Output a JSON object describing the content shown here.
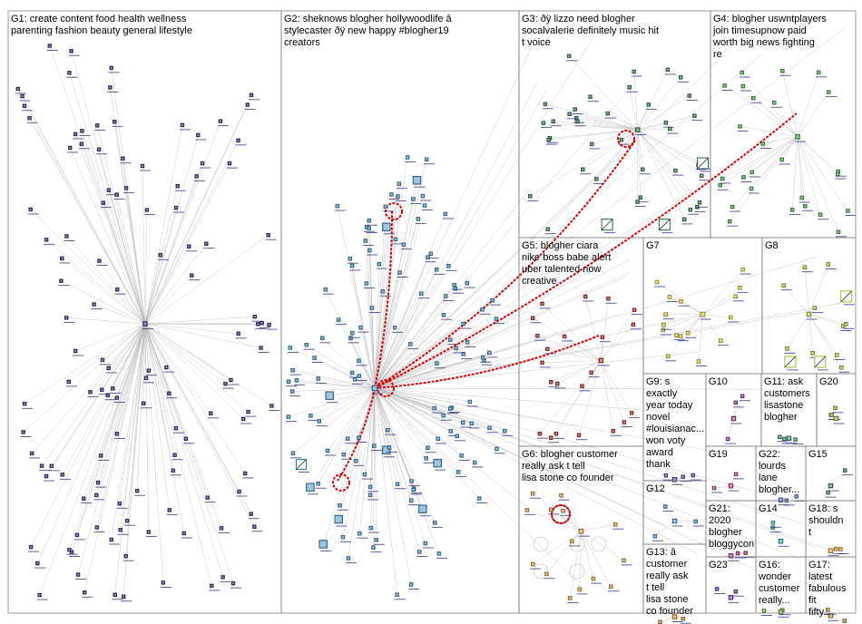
{
  "groups": [
    {
      "id": "G1",
      "label": "G1: create content food health wellness parenting fashion beauty general lifestyle",
      "color": "#2a1a6e"
    },
    {
      "id": "G2",
      "label": "G2: sheknows blogher hollywoodlife â stylecaster ðÿ new happy #blogher19 creators",
      "color": "#2d7fb8"
    },
    {
      "id": "G3",
      "label": "G3: ðÿ lizzo need blogher socalvalerie definitely music hit t voice",
      "color": "#1e6b3a"
    },
    {
      "id": "G4",
      "label": "G4: blogher uswntplayers join timesupnow paid worth big news fighting re",
      "color": "#2e9a2e"
    },
    {
      "id": "G5",
      "label": "G5: blogher ciara nike boss babe alert uber talented now creative",
      "color": "#a01818"
    },
    {
      "id": "G6",
      "label": "G6: blogher customer really ask t tell lisa stone co founder",
      "color": "#d08a20"
    },
    {
      "id": "G7",
      "label": "G7",
      "color": "#d4c020"
    },
    {
      "id": "G8",
      "label": "G8",
      "color": "#98c020"
    },
    {
      "id": "G9",
      "label": "G9: s exactly year today novel #louisianac... won voty award thank",
      "color": "#5030a0"
    },
    {
      "id": "G10",
      "label": "G10",
      "color": "#8a2080"
    },
    {
      "id": "G11",
      "label": "G11: ask customers lisastone blogher",
      "color": "#308070"
    },
    {
      "id": "G12",
      "label": "G12",
      "color": "#3080c0"
    },
    {
      "id": "G13",
      "label": "G13: â customer really ask t tell lisa stone co founder",
      "color": "#c07020"
    },
    {
      "id": "G14",
      "label": "G14",
      "color": "#20a0a0"
    },
    {
      "id": "G15",
      "label": "G15",
      "color": "#207040"
    },
    {
      "id": "G16",
      "label": "G16: wonder customer really...",
      "color": "#60a030"
    },
    {
      "id": "G17",
      "label": "G17: latest fabulous fit fifty...",
      "color": "#a08020"
    },
    {
      "id": "G18",
      "label": "G18: s shouldn t",
      "color": "#d09020"
    },
    {
      "id": "G19",
      "label": "G19",
      "color": "#b02080"
    },
    {
      "id": "G20",
      "label": "G20",
      "color": "#80a020"
    },
    {
      "id": "G21",
      "label": "G21: 2020 blogher bloggycon",
      "color": "#a02060"
    },
    {
      "id": "G22",
      "label": "G22: lourds lane blogher...",
      "color": "#4060b0"
    },
    {
      "id": "G23",
      "label": "G23",
      "color": "#6020a0"
    }
  ],
  "highlight_color": "#dd0000",
  "edge_color": "#b8b8b8"
}
